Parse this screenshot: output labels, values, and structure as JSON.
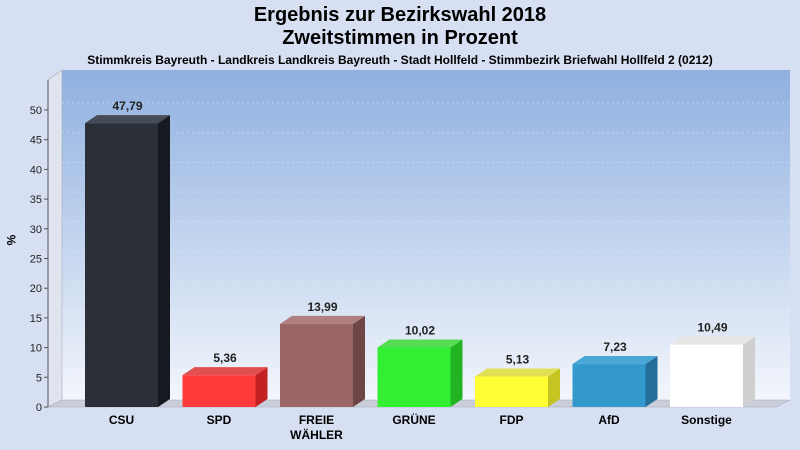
{
  "chart_data": {
    "type": "bar",
    "title_line1": "Ergebnis zur Bezirkswahl 2018",
    "title_line2": "Zweitstimmen in Prozent",
    "subtitle": "Stimmkreis Bayreuth - Landkreis Landkreis Bayreuth - Stadt Hollfeld - Stimmbezirk Briefwahl Hollfeld 2 (0212)",
    "ylabel": "%",
    "ylim": [
      0,
      53
    ],
    "yticks": [
      0,
      5,
      10,
      15,
      20,
      25,
      30,
      35,
      40,
      45,
      50
    ],
    "grid": false,
    "categories": [
      {
        "line1": "CSU",
        "line2": ""
      },
      {
        "line1": "SPD",
        "line2": ""
      },
      {
        "line1": "FREIE",
        "line2": "WÄHLER"
      },
      {
        "line1": "GRÜNE",
        "line2": ""
      },
      {
        "line1": "FDP",
        "line2": ""
      },
      {
        "line1": "AfD",
        "line2": ""
      },
      {
        "line1": "Sonstige",
        "line2": ""
      }
    ],
    "values": [
      47.79,
      5.36,
      13.99,
      10.02,
      5.13,
      7.23,
      10.49
    ],
    "value_labels": [
      "47,79",
      "5,36",
      "13,99",
      "10,02",
      "5,13",
      "7,23",
      "10,49"
    ],
    "colors": [
      "#2a2f38",
      "#ff3a3a",
      "#9a6666",
      "#33ee33",
      "#ffff33",
      "#3399cc",
      "#ffffff"
    ],
    "side_colors": [
      "#16191f",
      "#c42222",
      "#6f4646",
      "#22b322",
      "#c4c422",
      "#236f99",
      "#cfcfcf"
    ],
    "top_colors": [
      "#464c57",
      "#e05050",
      "#b08080",
      "#55dd55",
      "#e0e055",
      "#4aa8d8",
      "#e6e6e6"
    ]
  }
}
